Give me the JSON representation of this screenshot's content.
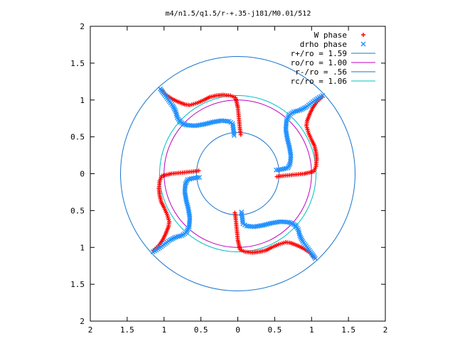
{
  "chart_data": {
    "type": "scatter",
    "title": "m4/n1.5/q1.5/r-+.35-j181/M0.01/512",
    "xlabel": "",
    "ylabel": "",
    "xlim": [
      -2,
      2
    ],
    "ylim": [
      -2,
      2
    ],
    "grid": false,
    "legend_position": "top-right",
    "x_tick_labels": [
      "2",
      "1.5",
      "1",
      "0.5",
      "0",
      "0.5",
      "1",
      "1.5",
      "2"
    ],
    "y_tick_labels": [
      "2",
      "1.5",
      "1",
      "0.5",
      "0",
      "0.5",
      "1",
      "1.5",
      "2"
    ],
    "x_tick_values": [
      -2,
      -1.5,
      -1,
      -0.5,
      0,
      0.5,
      1,
      1.5,
      2
    ],
    "y_tick_values": [
      2,
      1.5,
      1,
      0.5,
      0,
      -0.5,
      -1,
      -1.5,
      -2
    ],
    "series": [
      {
        "name": "W phase",
        "marker": "plus",
        "color": "#ff0000",
        "points": [
          [
            1.14,
            1.04
          ],
          [
            1.1,
            1.0
          ],
          [
            1.06,
            0.96
          ],
          [
            1.02,
            0.9
          ],
          [
            0.98,
            0.82
          ],
          [
            0.94,
            0.72
          ],
          [
            0.93,
            0.65
          ],
          [
            0.96,
            0.55
          ],
          [
            1.0,
            0.46
          ],
          [
            1.04,
            0.38
          ],
          [
            1.06,
            0.29
          ],
          [
            1.07,
            0.2
          ],
          [
            1.06,
            0.1
          ],
          [
            1.03,
            0.03
          ],
          [
            0.9,
            0.0
          ],
          [
            0.8,
            -0.01
          ],
          [
            0.7,
            -0.02
          ],
          [
            0.6,
            -0.03
          ],
          [
            0.53,
            -0.04
          ],
          [
            -1.14,
            -1.04
          ],
          [
            -1.1,
            -1.0
          ],
          [
            -1.06,
            -0.96
          ],
          [
            -1.02,
            -0.9
          ],
          [
            -0.98,
            -0.82
          ],
          [
            -0.94,
            -0.72
          ],
          [
            -0.93,
            -0.65
          ],
          [
            -0.96,
            -0.55
          ],
          [
            -1.0,
            -0.46
          ],
          [
            -1.04,
            -0.38
          ],
          [
            -1.06,
            -0.29
          ],
          [
            -1.07,
            -0.2
          ],
          [
            -1.06,
            -0.1
          ],
          [
            -1.03,
            -0.03
          ],
          [
            -0.9,
            0.0
          ],
          [
            -0.8,
            0.01
          ],
          [
            -0.7,
            0.02
          ],
          [
            -0.6,
            0.03
          ],
          [
            -0.53,
            0.04
          ],
          [
            -1.04,
            1.14
          ],
          [
            -1.0,
            1.1
          ],
          [
            -0.96,
            1.06
          ],
          [
            -0.9,
            1.02
          ],
          [
            -0.82,
            0.98
          ],
          [
            -0.72,
            0.94
          ],
          [
            -0.65,
            0.93
          ],
          [
            -0.55,
            0.96
          ],
          [
            -0.46,
            1.0
          ],
          [
            -0.38,
            1.04
          ],
          [
            -0.29,
            1.06
          ],
          [
            -0.2,
            1.07
          ],
          [
            -0.1,
            1.06
          ],
          [
            -0.03,
            1.03
          ],
          [
            0.0,
            0.9
          ],
          [
            0.01,
            0.8
          ],
          [
            0.02,
            0.7
          ],
          [
            0.03,
            0.6
          ],
          [
            0.04,
            0.53
          ],
          [
            1.04,
            -1.14
          ],
          [
            1.0,
            -1.1
          ],
          [
            0.96,
            -1.06
          ],
          [
            0.9,
            -1.02
          ],
          [
            0.82,
            -0.98
          ],
          [
            0.72,
            -0.94
          ],
          [
            0.65,
            -0.93
          ],
          [
            0.55,
            -0.96
          ],
          [
            0.46,
            -1.0
          ],
          [
            0.38,
            -1.04
          ],
          [
            0.29,
            -1.06
          ],
          [
            0.2,
            -1.07
          ],
          [
            0.1,
            -1.06
          ],
          [
            0.03,
            -1.03
          ],
          [
            0.0,
            -0.9
          ],
          [
            -0.01,
            -0.8
          ],
          [
            -0.02,
            -0.7
          ],
          [
            -0.03,
            -0.6
          ],
          [
            -0.04,
            -0.53
          ]
        ]
      },
      {
        "name": "drho phase",
        "marker": "cross",
        "color": "#1e90ff",
        "points": [
          [
            1.15,
            1.06
          ],
          [
            1.08,
            1.02
          ],
          [
            1.0,
            0.96
          ],
          [
            0.92,
            0.9
          ],
          [
            0.84,
            0.86
          ],
          [
            0.76,
            0.84
          ],
          [
            0.7,
            0.8
          ],
          [
            0.66,
            0.72
          ],
          [
            0.65,
            0.6
          ],
          [
            0.67,
            0.48
          ],
          [
            0.7,
            0.36
          ],
          [
            0.72,
            0.24
          ],
          [
            0.71,
            0.14
          ],
          [
            0.68,
            0.08
          ],
          [
            0.6,
            0.06
          ],
          [
            0.52,
            0.05
          ],
          [
            1.05,
            -1.15
          ],
          [
            1.0,
            -1.08
          ],
          [
            0.94,
            -1.0
          ],
          [
            0.88,
            -0.92
          ],
          [
            0.84,
            -0.84
          ],
          [
            0.82,
            -0.76
          ],
          [
            0.78,
            -0.7
          ],
          [
            0.7,
            -0.66
          ],
          [
            0.58,
            -0.65
          ],
          [
            0.46,
            -0.67
          ],
          [
            0.34,
            -0.7
          ],
          [
            0.22,
            -0.72
          ],
          [
            0.12,
            -0.71
          ],
          [
            0.07,
            -0.68
          ],
          [
            0.06,
            -0.6
          ],
          [
            0.05,
            -0.52
          ],
          [
            -1.15,
            -1.06
          ],
          [
            -1.08,
            -1.02
          ],
          [
            -1.0,
            -0.96
          ],
          [
            -0.92,
            -0.9
          ],
          [
            -0.84,
            -0.86
          ],
          [
            -0.76,
            -0.84
          ],
          [
            -0.7,
            -0.8
          ],
          [
            -0.66,
            -0.72
          ],
          [
            -0.65,
            -0.6
          ],
          [
            -0.67,
            -0.48
          ],
          [
            -0.7,
            -0.36
          ],
          [
            -0.72,
            -0.24
          ],
          [
            -0.71,
            -0.14
          ],
          [
            -0.68,
            -0.08
          ],
          [
            -0.6,
            -0.06
          ],
          [
            -0.52,
            -0.05
          ],
          [
            -1.05,
            1.15
          ],
          [
            -1.0,
            1.08
          ],
          [
            -0.94,
            1.0
          ],
          [
            -0.88,
            0.92
          ],
          [
            -0.84,
            0.84
          ],
          [
            -0.82,
            0.76
          ],
          [
            -0.78,
            0.7
          ],
          [
            -0.7,
            0.66
          ],
          [
            -0.58,
            0.65
          ],
          [
            -0.46,
            0.67
          ],
          [
            -0.34,
            0.7
          ],
          [
            -0.22,
            0.72
          ],
          [
            -0.12,
            0.71
          ],
          [
            -0.07,
            0.68
          ],
          [
            -0.06,
            0.6
          ],
          [
            -0.05,
            0.52
          ]
        ]
      },
      {
        "name": "r+/ro = 1.59",
        "kind": "circle",
        "radius": 1.59,
        "color": "#1874cd"
      },
      {
        "name": "ro/ro = 1.00",
        "kind": "circle",
        "radius": 1.0,
        "color": "#c000c0"
      },
      {
        "name": "r-/ro = .56",
        "kind": "circle",
        "radius": 0.56,
        "color": "#1874cd"
      },
      {
        "name": "rc/ro = 1.06",
        "kind": "circle",
        "radius": 1.06,
        "color": "#00c0c0"
      }
    ]
  }
}
